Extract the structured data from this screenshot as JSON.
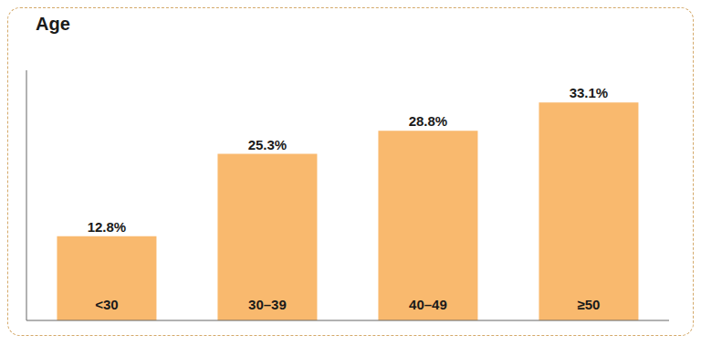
{
  "chart_data": {
    "type": "bar",
    "title": "Age",
    "categories": [
      "<30",
      "30–39",
      "40–49",
      "≥50"
    ],
    "values": [
      12.8,
      25.3,
      28.8,
      33.1
    ],
    "value_labels": [
      "12.8%",
      "25.3%",
      "28.8%",
      "33.1%"
    ],
    "color": "#F9B96E",
    "ylim": [
      0,
      38
    ],
    "tick_labels": false,
    "data_labels": true,
    "grid": false
  }
}
